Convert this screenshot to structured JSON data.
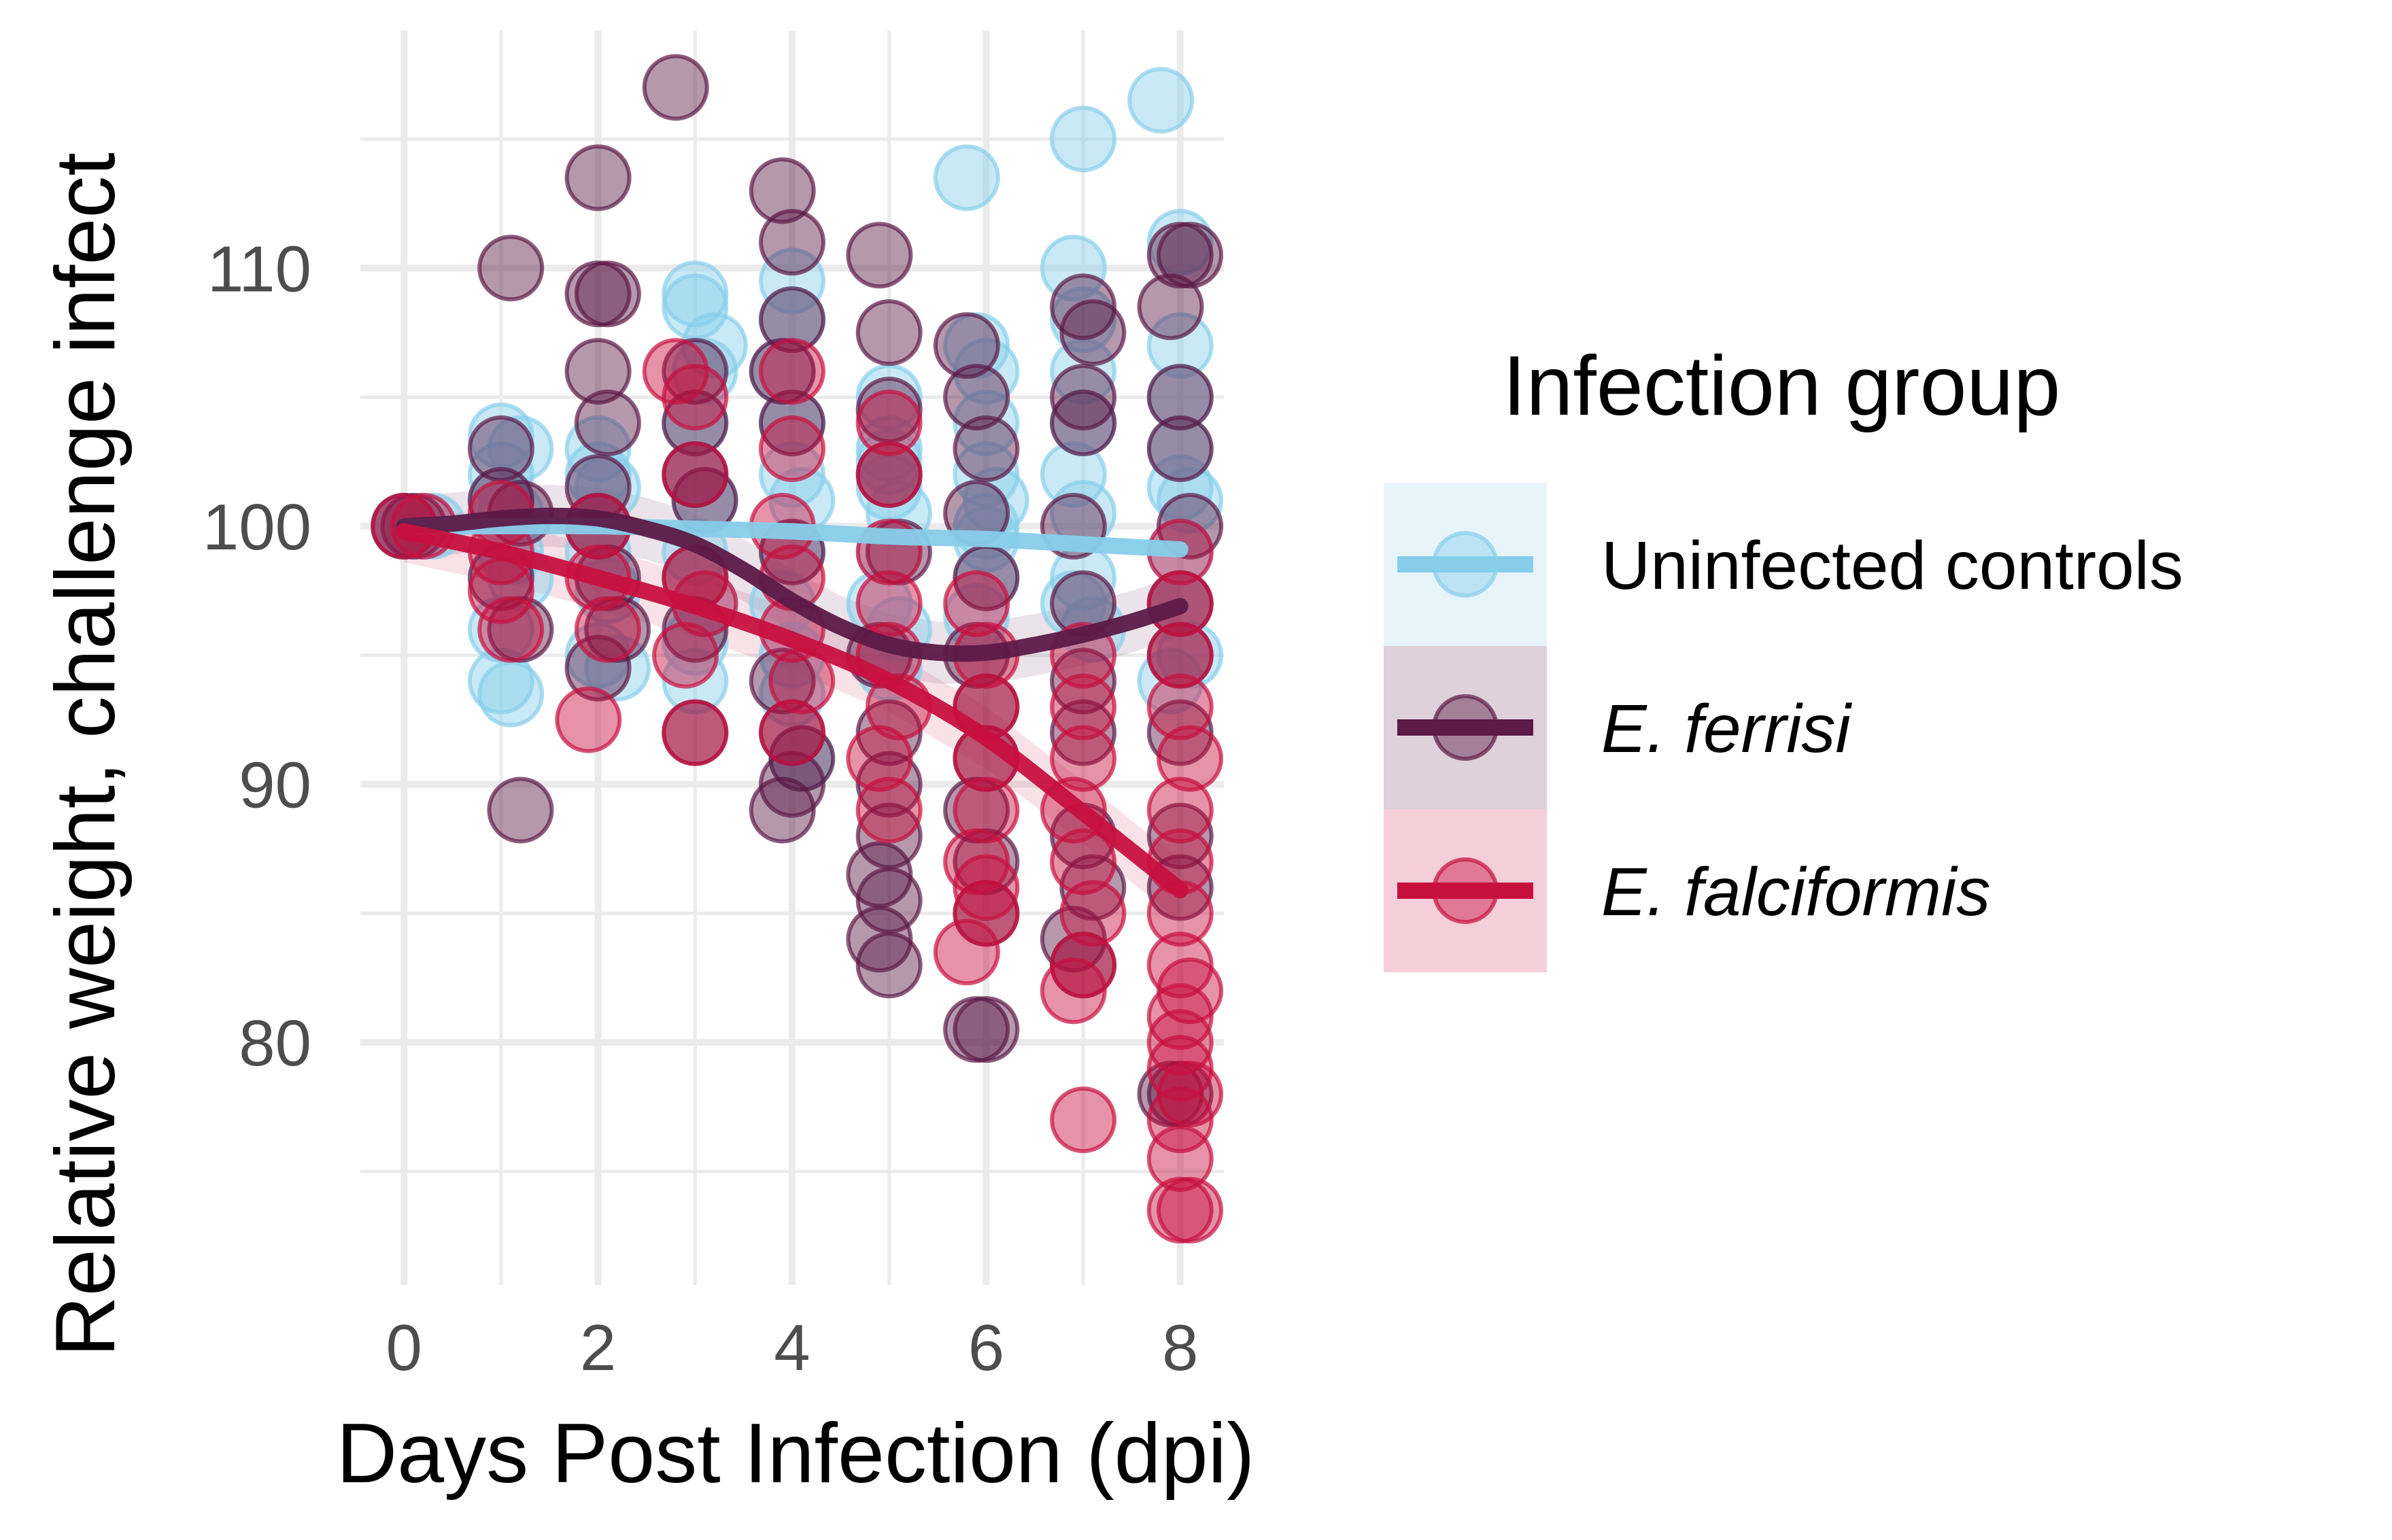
{
  "chart_data": {
    "type": "scatter",
    "title": "",
    "xlabel": "Days Post Infection (dpi)",
    "ylabel": "Relative weight, challenge infect",
    "xlim": [
      -0.45,
      8.45
    ],
    "ylim": [
      70.6,
      119.2
    ],
    "x_ticks": [
      0,
      2,
      4,
      6,
      8
    ],
    "y_ticks": [
      80,
      90,
      100,
      110
    ],
    "x_tick_labels": [
      "0",
      "2",
      "4",
      "6",
      "8"
    ],
    "y_tick_labels": [
      "80",
      "90",
      "100",
      "110"
    ],
    "grid": true,
    "legend": {
      "title": "Infection group",
      "position": "right"
    },
    "series": [
      {
        "name": "Uninfected controls",
        "italic": false,
        "color": "#87ceeb",
        "fit_color": "#87ceeb",
        "points": [
          [
            0,
            100
          ],
          [
            0,
            100
          ],
          [
            0.1,
            100
          ],
          [
            0.2,
            100
          ],
          [
            0.3,
            100
          ],
          [
            1,
            103.5
          ],
          [
            1,
            102
          ],
          [
            1,
            101
          ],
          [
            1.1,
            100.5
          ],
          [
            1.1,
            99
          ],
          [
            1.2,
            98
          ],
          [
            1,
            96
          ],
          [
            1,
            94
          ],
          [
            1.1,
            93.5
          ],
          [
            1.2,
            103
          ],
          [
            2,
            103
          ],
          [
            2,
            102
          ],
          [
            2,
            100
          ],
          [
            2,
            99
          ],
          [
            2.1,
            97.5
          ],
          [
            2,
            95
          ],
          [
            2.2,
            94.5
          ],
          [
            2.1,
            101.5
          ],
          [
            3,
            109
          ],
          [
            3,
            108.5
          ],
          [
            3.1,
            106
          ],
          [
            3,
            104
          ],
          [
            3,
            102
          ],
          [
            3.1,
            101
          ],
          [
            3,
            99
          ],
          [
            3.1,
            97
          ],
          [
            3,
            95.5
          ],
          [
            3,
            94
          ],
          [
            3.2,
            107
          ],
          [
            4,
            109.5
          ],
          [
            4,
            108
          ],
          [
            3.9,
            106
          ],
          [
            4,
            104
          ],
          [
            4,
            102
          ],
          [
            4.1,
            101
          ],
          [
            4,
            99
          ],
          [
            3.9,
            97
          ],
          [
            4,
            95
          ],
          [
            4,
            93.5
          ],
          [
            4.1,
            91
          ],
          [
            5,
            105
          ],
          [
            5,
            103
          ],
          [
            5,
            101.5
          ],
          [
            5.1,
            100.5
          ],
          [
            5,
            99
          ],
          [
            4.9,
            97
          ],
          [
            5.1,
            96
          ],
          [
            5,
            94.5
          ],
          [
            5,
            102.5
          ],
          [
            5.8,
            113.5
          ],
          [
            5.9,
            107
          ],
          [
            6,
            106
          ],
          [
            6,
            104
          ],
          [
            6,
            102
          ],
          [
            6.1,
            101
          ],
          [
            6,
            99.5
          ],
          [
            6,
            98
          ],
          [
            5.9,
            96.5
          ],
          [
            6,
            100
          ],
          [
            7,
            115
          ],
          [
            6.9,
            110
          ],
          [
            7,
            108
          ],
          [
            7,
            106
          ],
          [
            7,
            104
          ],
          [
            6.9,
            102
          ],
          [
            7,
            100.5
          ],
          [
            7,
            98
          ],
          [
            7.1,
            96
          ],
          [
            6.9,
            97
          ],
          [
            7.8,
            116.5
          ],
          [
            8,
            111
          ],
          [
            8,
            107
          ],
          [
            8,
            105
          ],
          [
            8,
            103
          ],
          [
            8.1,
            101
          ],
          [
            8,
            99
          ],
          [
            8,
            97
          ],
          [
            8.1,
            95
          ],
          [
            7.9,
            94
          ],
          [
            8,
            101.5
          ]
        ],
        "fit": [
          [
            0,
            100
          ],
          [
            1,
            100
          ],
          [
            2,
            100
          ],
          [
            3,
            99.9
          ],
          [
            4,
            99.8
          ],
          [
            5,
            99.6
          ],
          [
            6,
            99.5
          ],
          [
            7,
            99.3
          ],
          [
            8,
            99.1
          ]
        ]
      },
      {
        "name": "E. ferrisi",
        "italic": true,
        "color": "#5c1a47",
        "fit_color": "#5c1a47",
        "points": [
          [
            0,
            100
          ],
          [
            0.1,
            100
          ],
          [
            1,
            103
          ],
          [
            1,
            101
          ],
          [
            1.1,
            110
          ],
          [
            1.2,
            100.5
          ],
          [
            1,
            98
          ],
          [
            1.2,
            96
          ],
          [
            1.2,
            89
          ],
          [
            2,
            113.5
          ],
          [
            2,
            109
          ],
          [
            2.1,
            109
          ],
          [
            2,
            106
          ],
          [
            2.1,
            104
          ],
          [
            2,
            101.5
          ],
          [
            2,
            100
          ],
          [
            2.1,
            98
          ],
          [
            2.2,
            96
          ],
          [
            2,
            94.5
          ],
          [
            2.8,
            117
          ],
          [
            3,
            106
          ],
          [
            3,
            104
          ],
          [
            3,
            102
          ],
          [
            3.1,
            101
          ],
          [
            3,
            98
          ],
          [
            3,
            96
          ],
          [
            3,
            92
          ],
          [
            3.9,
            113
          ],
          [
            4,
            111
          ],
          [
            4,
            108
          ],
          [
            3.9,
            106
          ],
          [
            4,
            104
          ],
          [
            4,
            99
          ],
          [
            3.9,
            94
          ],
          [
            4,
            92
          ],
          [
            4,
            90
          ],
          [
            3.9,
            89
          ],
          [
            4.1,
            91
          ],
          [
            4.9,
            110.5
          ],
          [
            5,
            107.5
          ],
          [
            5,
            104.5
          ],
          [
            5,
            102
          ],
          [
            5.1,
            99
          ],
          [
            4.9,
            95
          ],
          [
            5,
            92
          ],
          [
            5,
            90
          ],
          [
            5,
            88
          ],
          [
            4.9,
            86.5
          ],
          [
            5,
            85.5
          ],
          [
            4.9,
            84
          ],
          [
            5,
            83
          ],
          [
            5.8,
            107
          ],
          [
            5.9,
            105
          ],
          [
            6,
            103
          ],
          [
            5.9,
            100.5
          ],
          [
            6,
            98
          ],
          [
            5.9,
            95
          ],
          [
            6,
            93
          ],
          [
            6,
            91
          ],
          [
            5.9,
            89
          ],
          [
            6,
            87
          ],
          [
            6,
            85
          ],
          [
            5.9,
            80.5
          ],
          [
            6,
            80.5
          ],
          [
            7,
            108.5
          ],
          [
            7.1,
            107.5
          ],
          [
            7,
            105
          ],
          [
            7,
            104
          ],
          [
            6.9,
            100
          ],
          [
            7,
            97
          ],
          [
            7,
            94
          ],
          [
            7,
            92
          ],
          [
            7,
            88
          ],
          [
            7.1,
            86
          ],
          [
            6.9,
            84
          ],
          [
            7,
            83
          ],
          [
            8,
            110.5
          ],
          [
            8.1,
            110.5
          ],
          [
            7.9,
            108.5
          ],
          [
            8,
            105
          ],
          [
            8,
            103
          ],
          [
            8.1,
            100
          ],
          [
            8,
            97
          ],
          [
            8,
            95
          ],
          [
            8,
            92
          ],
          [
            8,
            88
          ],
          [
            8,
            86
          ],
          [
            7.9,
            78
          ],
          [
            8,
            78
          ]
        ],
        "fit": [
          [
            0,
            100
          ],
          [
            0.5,
            100.1
          ],
          [
            1,
            100.3
          ],
          [
            1.5,
            100.4
          ],
          [
            2,
            100.3
          ],
          [
            2.5,
            99.9
          ],
          [
            3,
            99.3
          ],
          [
            3.5,
            98.3
          ],
          [
            4,
            97.1
          ],
          [
            4.5,
            96.1
          ],
          [
            5,
            95.4
          ],
          [
            5.5,
            95.1
          ],
          [
            6,
            95.1
          ],
          [
            6.5,
            95.4
          ],
          [
            7,
            95.8
          ],
          [
            7.5,
            96.3
          ],
          [
            8,
            96.9
          ]
        ],
        "fit_band": true
      },
      {
        "name": "E. falciformis",
        "italic": true,
        "color": "#c8103f",
        "fit_color": "#c8103f",
        "points": [
          [
            0,
            100
          ],
          [
            0.2,
            100
          ],
          [
            1,
            100.5
          ],
          [
            1,
            99
          ],
          [
            1,
            97.5
          ],
          [
            1.1,
            96
          ],
          [
            2,
            100
          ],
          [
            2,
            98
          ],
          [
            2.1,
            96
          ],
          [
            1.9,
            92.5
          ],
          [
            2.8,
            106
          ],
          [
            3,
            105
          ],
          [
            3,
            102
          ],
          [
            3,
            98
          ],
          [
            3.1,
            97
          ],
          [
            2.9,
            95
          ],
          [
            3,
            92
          ],
          [
            4,
            106
          ],
          [
            4,
            103
          ],
          [
            3.9,
            100
          ],
          [
            4,
            98
          ],
          [
            4,
            96
          ],
          [
            4.1,
            94
          ],
          [
            4,
            92
          ],
          [
            5,
            104
          ],
          [
            5,
            102
          ],
          [
            5,
            99
          ],
          [
            5,
            97
          ],
          [
            5,
            95
          ],
          [
            5.1,
            93
          ],
          [
            4.9,
            91
          ],
          [
            5,
            89
          ],
          [
            5.9,
            97
          ],
          [
            6,
            95
          ],
          [
            6,
            93
          ],
          [
            6,
            91
          ],
          [
            6,
            89
          ],
          [
            5.9,
            87
          ],
          [
            6,
            85
          ],
          [
            5.8,
            83.5
          ],
          [
            6,
            86
          ],
          [
            7,
            95
          ],
          [
            7,
            93
          ],
          [
            7,
            91
          ],
          [
            6.9,
            89
          ],
          [
            7,
            87
          ],
          [
            7.1,
            85
          ],
          [
            7,
            83
          ],
          [
            6.9,
            82
          ],
          [
            7,
            77
          ],
          [
            8,
            99
          ],
          [
            8,
            97
          ],
          [
            8,
            95
          ],
          [
            8,
            93
          ],
          [
            8.1,
            91
          ],
          [
            8,
            89
          ],
          [
            8,
            87
          ],
          [
            8,
            85
          ],
          [
            8,
            83
          ],
          [
            8.1,
            82
          ],
          [
            8,
            80
          ],
          [
            8,
            79
          ],
          [
            8.1,
            78
          ],
          [
            8,
            77
          ],
          [
            8,
            75.5
          ],
          [
            8,
            73.5
          ],
          [
            8.1,
            73.5
          ],
          [
            8,
            81
          ]
        ],
        "fit": [
          [
            0,
            99.8
          ],
          [
            1,
            99
          ],
          [
            2,
            98
          ],
          [
            3,
            96.9
          ],
          [
            4,
            95.6
          ],
          [
            5,
            94
          ],
          [
            6,
            91.8
          ],
          [
            7,
            88.9
          ],
          [
            8,
            85.9
          ]
        ],
        "fit_band": true
      }
    ]
  }
}
